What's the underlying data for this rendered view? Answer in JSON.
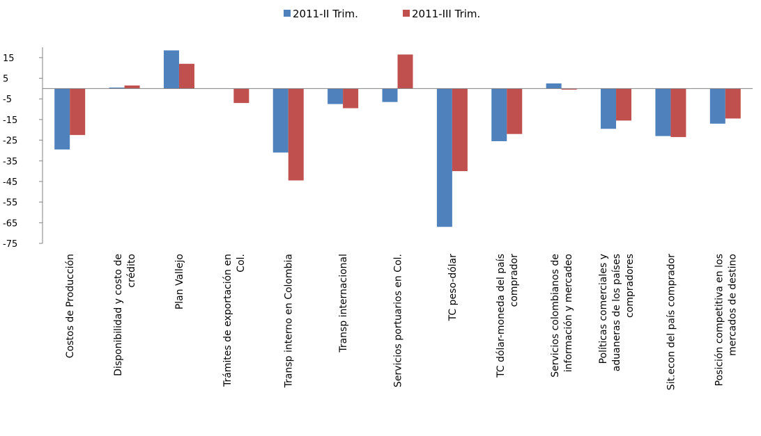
{
  "chart_data": {
    "type": "bar",
    "title": "",
    "xlabel": "",
    "ylabel": "",
    "ylim": [
      -75,
      20
    ],
    "yticks": [
      15,
      5,
      -5,
      -15,
      -25,
      -35,
      -45,
      -55,
      -65,
      -75
    ],
    "grid": false,
    "legend_position": "top",
    "categories": [
      [
        "Costos de Producción"
      ],
      [
        "Disponibilidad y costo de",
        "crédito"
      ],
      [
        "Plan Vallejo"
      ],
      [
        "Trámites de exportación en",
        "Col."
      ],
      [
        "Transp interno en Colombia"
      ],
      [
        "Transp internacional"
      ],
      [
        "Servicios portuarios en Col."
      ],
      [
        "TC peso-dólar"
      ],
      [
        "TC dólar-moneda del país",
        "comprador"
      ],
      [
        "Servicios colombianos de",
        "información y mercadeo"
      ],
      [
        "Políticas comerciales y",
        "aduaneras de los países",
        "compradores"
      ],
      [
        "Sit.econ del país comprador"
      ],
      [
        "Posición competitiva en los",
        "mercados de destino"
      ]
    ],
    "series": [
      {
        "name": "2011-II Trim.",
        "color": "#4F81BD",
        "values": [
          -29.5,
          0.5,
          18.5,
          0,
          -31,
          -7.5,
          -6.5,
          -67,
          -25.5,
          2.5,
          -19.5,
          -23,
          -17
        ]
      },
      {
        "name": "2011-III Trim.",
        "color": "#C0504D",
        "values": [
          -22.5,
          1.5,
          12,
          -7,
          -44.5,
          -9.5,
          16.5,
          -40,
          -22,
          -0.5,
          -15.5,
          -23.5,
          -14.5
        ]
      }
    ]
  }
}
